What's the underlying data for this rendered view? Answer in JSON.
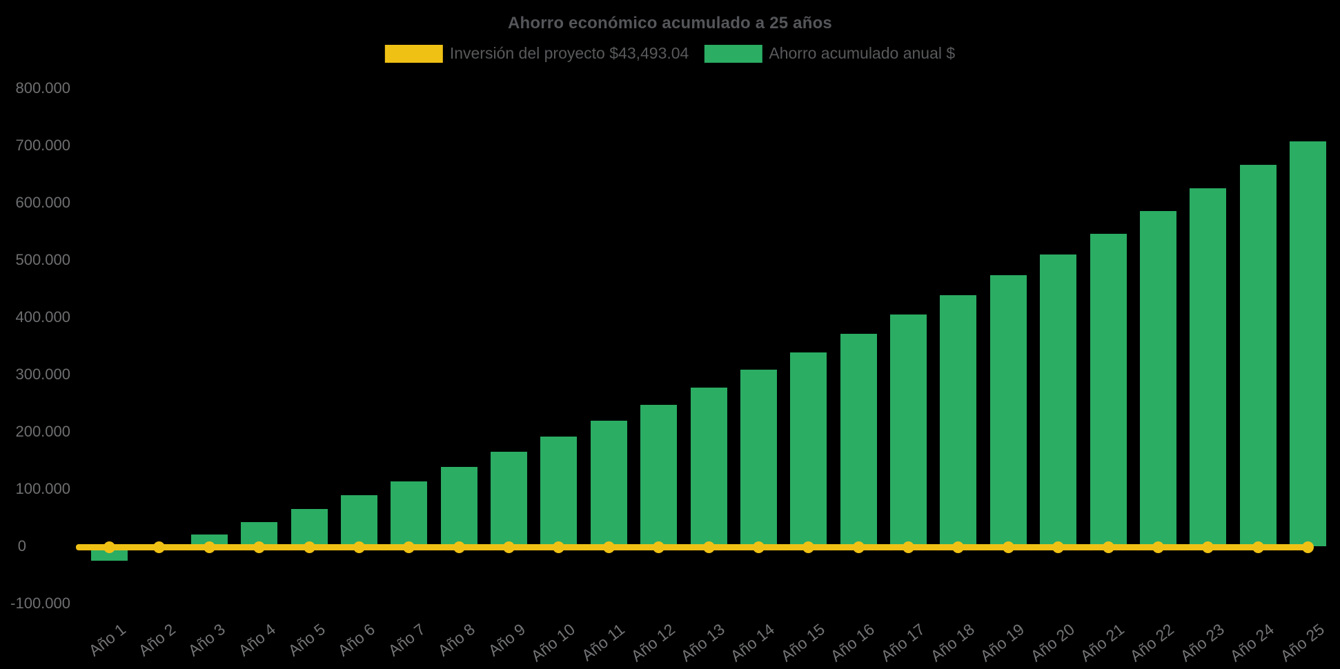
{
  "title": "Ahorro económico acumulado a 25 años",
  "colors": {
    "background": "#000000",
    "title_text": "#55565a",
    "tick_text": "#6e6f71",
    "bar_green": "#2bad64",
    "line_yellow": "#f0c115"
  },
  "legend": {
    "items": [
      {
        "label": "Inversión del proyecto $43,493.04",
        "color": "#f0c115",
        "series": "line"
      },
      {
        "label": "Ahorro acumulado anual $",
        "color": "#2bad64",
        "series": "bar"
      }
    ]
  },
  "y_axis": {
    "ticks": [
      {
        "label": "800.000",
        "value": 800000
      },
      {
        "label": "700.000",
        "value": 700000
      },
      {
        "label": "600.000",
        "value": 600000
      },
      {
        "label": "500.000",
        "value": 500000
      },
      {
        "label": "400.000",
        "value": 400000
      },
      {
        "label": "300.000",
        "value": 300000
      },
      {
        "label": "200.000",
        "value": 200000
      },
      {
        "label": "100.000",
        "value": 100000
      },
      {
        "label": "0",
        "value": 0
      },
      {
        "label": "-100.000",
        "value": -100000
      }
    ]
  },
  "chart_data": {
    "type": "bar",
    "title": "Ahorro económico acumulado a 25 años",
    "categories": [
      "Año 1",
      "Año 2",
      "Año 3",
      "Año 4",
      "Año 5",
      "Año 6",
      "Año 7",
      "Año 8",
      "Año 9",
      "Año 10",
      "Año 11",
      "Año 12",
      "Año 13",
      "Año 14",
      "Año 15",
      "Año 16",
      "Año 17",
      "Año 18",
      "Año 19",
      "Año 20",
      "Año 21",
      "Año 22",
      "Año 23",
      "Año 24",
      "Año 25"
    ],
    "series": [
      {
        "name": "Ahorro acumulado anual $",
        "type": "bar",
        "color": "#2bad64",
        "values": [
          -25000,
          -4000,
          20000,
          42000,
          65000,
          89000,
          113000,
          139000,
          165000,
          191000,
          219000,
          247000,
          277000,
          308000,
          338000,
          371000,
          405000,
          438000,
          474000,
          510000,
          546000,
          586000,
          625000,
          666000,
          707000
        ]
      },
      {
        "name": "Inversión del proyecto $43,493.04",
        "type": "line",
        "color": "#f0c115",
        "values": [
          0,
          0,
          0,
          0,
          0,
          0,
          0,
          0,
          0,
          0,
          0,
          0,
          0,
          0,
          0,
          0,
          0,
          0,
          0,
          0,
          0,
          0,
          0,
          0,
          0
        ]
      }
    ],
    "xlabel": "",
    "ylabel": "",
    "ylim": [
      -100000,
      800000
    ],
    "ytick_step": 100000,
    "grid": false,
    "legend_position": "top",
    "background": "#000000"
  }
}
